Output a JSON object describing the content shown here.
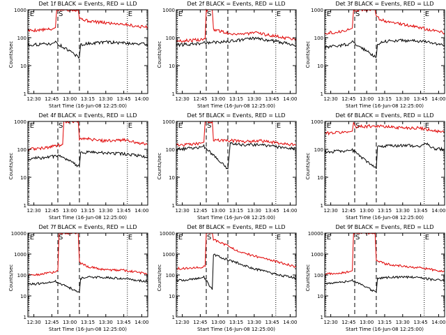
{
  "figure": {
    "y_axis_label": "Counts/sec",
    "x_axis_label": "Start Time (16-Jun-08 12:25:00)",
    "legend_text": "BLACK = Events, RED = LLD",
    "colors": {
      "events": "#000000",
      "lld": "#e00000"
    }
  },
  "chart_data": [
    {
      "type": "line",
      "title": "Det 1f BLACK = Events, RED = LLD",
      "xlabel": "Start Time (16-Jun-08 12:25:00)",
      "ylabel": "Counts/sec",
      "yscale": "log",
      "ylim": [
        1,
        1000
      ],
      "x_ticks": [
        "12:30",
        "12:45",
        "13:00",
        "13:15",
        "13:30",
        "13:45",
        "14:00"
      ],
      "y_ticks": [
        "1",
        "10",
        "100",
        "1000"
      ],
      "markers": [
        {
          "label": "E",
          "x": "12:26"
        },
        {
          "label": "S",
          "x": "12:50"
        },
        {
          "label": "E",
          "x": "13:48"
        }
      ],
      "series": [
        {
          "name": "LLD",
          "color": "red",
          "x": [
            "12:25",
            "12:35",
            "12:45",
            "12:48",
            "12:49",
            "13:07",
            "13:08",
            "13:15",
            "13:30",
            "13:45",
            "13:55",
            "14:05"
          ],
          "values": [
            180,
            190,
            200,
            230,
            1000,
            1000,
            500,
            400,
            340,
            310,
            260,
            240
          ]
        },
        {
          "name": "Events",
          "color": "black",
          "x": [
            "12:25",
            "12:35",
            "12:45",
            "12:48",
            "13:08",
            "13:09",
            "13:15",
            "13:30",
            "13:45",
            "13:55",
            "14:05"
          ],
          "values": [
            55,
            58,
            62,
            68,
            20,
            55,
            62,
            70,
            65,
            62,
            58
          ]
        }
      ]
    },
    {
      "type": "line",
      "title": "Det 2f BLACK = Events, RED = LLD",
      "xlabel": "Start Time (16-Jun-08 12:25:00)",
      "ylabel": "Counts/sec",
      "yscale": "log",
      "ylim": [
        1,
        1000
      ],
      "x_ticks": [
        "12:30",
        "12:45",
        "13:00",
        "13:15",
        "13:30",
        "13:45",
        "14:00"
      ],
      "y_ticks": [
        "1",
        "10",
        "100",
        "1000"
      ],
      "markers": [
        {
          "label": "E",
          "x": "12:26"
        },
        {
          "label": "S",
          "x": "12:50"
        },
        {
          "label": "E",
          "x": "13:48"
        }
      ],
      "series": [
        {
          "name": "LLD",
          "color": "red",
          "x": [
            "12:25",
            "12:35",
            "12:45",
            "12:49",
            "12:50",
            "12:55",
            "12:56",
            "13:10",
            "13:20",
            "13:30",
            "13:45",
            "13:55",
            "14:05"
          ],
          "values": [
            75,
            80,
            85,
            90,
            1000,
            1000,
            200,
            140,
            135,
            150,
            120,
            100,
            90
          ]
        },
        {
          "name": "Events",
          "color": "black",
          "x": [
            "12:25",
            "12:35",
            "12:45",
            "12:48",
            "13:10",
            "13:20",
            "13:30",
            "13:45",
            "13:55",
            "14:05"
          ],
          "values": [
            55,
            58,
            62,
            65,
            75,
            85,
            95,
            78,
            65,
            55
          ]
        }
      ]
    },
    {
      "type": "line",
      "title": "Det 3f BLACK = Events, RED = LLD",
      "xlabel": "Start Time (16-Jun-08 12:25:00)",
      "ylabel": "Counts/sec",
      "yscale": "log",
      "ylim": [
        1,
        1000
      ],
      "x_ticks": [
        "12:30",
        "12:45",
        "13:00",
        "13:15",
        "13:30",
        "13:45",
        "14:00"
      ],
      "y_ticks": [
        "1",
        "10",
        "100",
        "1000"
      ],
      "markers": [
        {
          "label": "E",
          "x": "12:26"
        },
        {
          "label": "S",
          "x": "12:50"
        },
        {
          "label": "E",
          "x": "13:48"
        }
      ],
      "series": [
        {
          "name": "LLD",
          "color": "red",
          "x": [
            "12:25",
            "12:35",
            "12:45",
            "12:48",
            "12:49",
            "13:07",
            "13:08",
            "13:15",
            "13:30",
            "13:45",
            "13:55",
            "14:05"
          ],
          "values": [
            150,
            160,
            190,
            220,
            1000,
            1000,
            550,
            400,
            300,
            230,
            180,
            150
          ]
        },
        {
          "name": "Events",
          "color": "black",
          "x": [
            "12:25",
            "12:35",
            "12:45",
            "12:48",
            "13:08",
            "13:09",
            "13:15",
            "13:30",
            "13:45",
            "13:55",
            "14:05"
          ],
          "values": [
            45,
            50,
            60,
            70,
            20,
            60,
            75,
            80,
            75,
            65,
            55
          ]
        }
      ]
    },
    {
      "type": "line",
      "title": "Det 4f BLACK = Events, RED = LLD",
      "xlabel": "Start Time (16-Jun-08 12:25:00)",
      "ylabel": "Counts/sec",
      "yscale": "log",
      "ylim": [
        1,
        1000
      ],
      "x_ticks": [
        "12:30",
        "12:45",
        "13:00",
        "13:15",
        "13:30",
        "13:45",
        "14:00"
      ],
      "y_ticks": [
        "1",
        "10",
        "100",
        "1000"
      ],
      "markers": [
        {
          "label": "E",
          "x": "12:26"
        },
        {
          "label": "S",
          "x": "12:50"
        },
        {
          "label": "E",
          "x": "13:48"
        }
      ],
      "series": [
        {
          "name": "LLD",
          "color": "red",
          "x": [
            "12:25",
            "12:35",
            "12:45",
            "12:54",
            "12:55",
            "13:07",
            "13:08",
            "13:15",
            "13:30",
            "13:45",
            "13:55",
            "14:05"
          ],
          "values": [
            100,
            110,
            125,
            150,
            1000,
            1000,
            250,
            240,
            200,
            220,
            180,
            150
          ]
        },
        {
          "name": "Events",
          "color": "black",
          "x": [
            "12:25",
            "12:35",
            "12:45",
            "12:50",
            "13:08",
            "13:09",
            "13:15",
            "13:30",
            "13:45",
            "13:55",
            "14:05"
          ],
          "values": [
            45,
            50,
            55,
            60,
            25,
            75,
            80,
            75,
            70,
            60,
            55
          ]
        }
      ]
    },
    {
      "type": "line",
      "title": "Det 5f BLACK = Events, RED = LLD",
      "xlabel": "Start Time (16-Jun-08 12:25:00)",
      "ylabel": "Counts/sec",
      "yscale": "log",
      "ylim": [
        1,
        1000
      ],
      "x_ticks": [
        "12:30",
        "12:45",
        "13:00",
        "13:15",
        "13:30",
        "13:45",
        "14:00"
      ],
      "y_ticks": [
        "1",
        "10",
        "100",
        "1000"
      ],
      "markers": [
        {
          "label": "E",
          "x": "12:26"
        },
        {
          "label": "S",
          "x": "12:50"
        },
        {
          "label": "E",
          "x": "13:48"
        }
      ],
      "series": [
        {
          "name": "LLD",
          "color": "red",
          "x": [
            "12:25",
            "12:35",
            "12:45",
            "12:48",
            "12:49",
            "12:55",
            "12:56",
            "13:10",
            "13:20",
            "13:35",
            "13:45",
            "13:55",
            "14:05"
          ],
          "values": [
            140,
            150,
            165,
            180,
            1000,
            1000,
            220,
            210,
            190,
            210,
            180,
            160,
            140
          ]
        },
        {
          "name": "Events",
          "color": "black",
          "x": [
            "12:25",
            "12:35",
            "12:45",
            "12:48",
            "13:08",
            "13:10",
            "13:20",
            "13:35",
            "13:45",
            "13:55",
            "14:05"
          ],
          "values": [
            100,
            110,
            120,
            130,
            20,
            160,
            145,
            150,
            130,
            115,
            105
          ]
        }
      ]
    },
    {
      "type": "line",
      "title": "Det 6f BLACK = Events, RED = LLD",
      "xlabel": "Start Time (16-Jun-08 12:25:00)",
      "ylabel": "Counts/sec",
      "yscale": "log",
      "ylim": [
        1,
        1000
      ],
      "x_ticks": [
        "12:30",
        "12:45",
        "13:00",
        "13:15",
        "13:30",
        "13:45",
        "14:00"
      ],
      "y_ticks": [
        "1",
        "10",
        "100",
        "1000"
      ],
      "markers": [
        {
          "label": "E",
          "x": "12:26"
        },
        {
          "label": "S",
          "x": "12:50"
        },
        {
          "label": "E",
          "x": "13:48"
        }
      ],
      "series": [
        {
          "name": "LLD",
          "color": "red",
          "x": [
            "12:25",
            "12:35",
            "12:45",
            "12:48",
            "12:49",
            "12:51",
            "13:08",
            "13:15",
            "13:30",
            "13:45",
            "13:55",
            "14:05"
          ],
          "values": [
            380,
            400,
            420,
            450,
            900,
            650,
            700,
            650,
            600,
            580,
            480,
            400
          ]
        },
        {
          "name": "Events",
          "color": "black",
          "x": [
            "12:25",
            "12:35",
            "12:45",
            "12:48",
            "13:08",
            "13:09",
            "13:15",
            "13:30",
            "13:45",
            "13:50",
            "13:55",
            "14:05"
          ],
          "values": [
            80,
            85,
            90,
            95,
            20,
            120,
            130,
            140,
            130,
            160,
            110,
            100
          ]
        }
      ]
    },
    {
      "type": "line",
      "title": "Det 7f BLACK = Events, RED = LLD",
      "xlabel": "Start Time (16-Jun-08 12:25:00)",
      "ylabel": "Counts/sec",
      "yscale": "log",
      "ylim": [
        1,
        10000
      ],
      "x_ticks": [
        "12:30",
        "12:45",
        "13:00",
        "13:15",
        "13:30",
        "13:45",
        "14:00"
      ],
      "y_ticks": [
        "1",
        "10",
        "100",
        "1000",
        "10000"
      ],
      "markers": [
        {
          "label": "E",
          "x": "12:26"
        },
        {
          "label": "S",
          "x": "12:50"
        },
        {
          "label": "E",
          "x": "13:48"
        }
      ],
      "series": [
        {
          "name": "LLD",
          "color": "red",
          "x": [
            "12:25",
            "12:35",
            "12:45",
            "12:50",
            "12:51",
            "13:07",
            "13:08",
            "13:15",
            "13:30",
            "13:45",
            "13:55",
            "14:05"
          ],
          "values": [
            100,
            110,
            130,
            160,
            10000,
            10000,
            400,
            250,
            180,
            170,
            140,
            110
          ]
        },
        {
          "name": "Events",
          "color": "black",
          "x": [
            "12:25",
            "12:35",
            "12:45",
            "12:48",
            "13:08",
            "13:09",
            "13:15",
            "13:30",
            "13:45",
            "13:55",
            "14:05"
          ],
          "values": [
            35,
            40,
            45,
            50,
            15,
            70,
            80,
            75,
            70,
            55,
            50
          ]
        }
      ]
    },
    {
      "type": "line",
      "title": "Det 8f BLACK = Events, RED = LLD",
      "xlabel": "Start Time (16-Jun-08 12:25:00)",
      "ylabel": "Counts/sec",
      "yscale": "log",
      "ylim": [
        1,
        10000
      ],
      "x_ticks": [
        "12:30",
        "12:45",
        "13:00",
        "13:15",
        "13:30",
        "13:45",
        "14:00"
      ],
      "y_ticks": [
        "1",
        "10",
        "100",
        "1000",
        "10000"
      ],
      "markers": [
        {
          "label": "E",
          "x": "12:26"
        },
        {
          "label": "S",
          "x": "12:50"
        },
        {
          "label": "E",
          "x": "13:48"
        }
      ],
      "series": [
        {
          "name": "LLD",
          "color": "red",
          "x": [
            "12:25",
            "12:35",
            "12:45",
            "12:49",
            "12:50",
            "12:55",
            "12:56",
            "13:05",
            "13:15",
            "13:30",
            "13:45",
            "13:55",
            "14:05"
          ],
          "values": [
            200,
            210,
            230,
            260,
            10000,
            10000,
            5000,
            3000,
            1500,
            800,
            500,
            350,
            250
          ]
        },
        {
          "name": "Events",
          "color": "black",
          "x": [
            "12:25",
            "12:35",
            "12:45",
            "12:48",
            "12:55",
            "12:56",
            "13:05",
            "13:15",
            "13:30",
            "13:45",
            "13:55",
            "14:05"
          ],
          "values": [
            55,
            60,
            70,
            80,
            20,
            1000,
            600,
            400,
            200,
            120,
            90,
            70
          ]
        }
      ]
    },
    {
      "type": "line",
      "title": "Det 9f BLACK = Events, RED = LLD",
      "xlabel": "Start Time (16-Jun-08 12:25:00)",
      "ylabel": "Counts/sec",
      "yscale": "log",
      "ylim": [
        1,
        10000
      ],
      "x_ticks": [
        "12:30",
        "12:45",
        "13:00",
        "13:15",
        "13:30",
        "13:45",
        "14:00"
      ],
      "y_ticks": [
        "1",
        "10",
        "100",
        "1000",
        "10000"
      ],
      "markers": [
        {
          "label": "E",
          "x": "12:26"
        },
        {
          "label": "S",
          "x": "12:50"
        },
        {
          "label": "E",
          "x": "13:48"
        }
      ],
      "series": [
        {
          "name": "LLD",
          "color": "red",
          "x": [
            "12:25",
            "12:35",
            "12:45",
            "12:48",
            "12:49",
            "13:07",
            "13:08",
            "13:15",
            "13:30",
            "13:45",
            "13:55",
            "14:05"
          ],
          "values": [
            110,
            120,
            140,
            160,
            10000,
            10000,
            500,
            350,
            260,
            220,
            180,
            150
          ]
        },
        {
          "name": "Events",
          "color": "black",
          "x": [
            "12:25",
            "12:35",
            "12:45",
            "12:48",
            "13:08",
            "13:09",
            "13:15",
            "13:30",
            "13:45",
            "13:55",
            "14:05"
          ],
          "values": [
            40,
            45,
            50,
            55,
            15,
            65,
            75,
            80,
            75,
            60,
            55
          ]
        }
      ]
    }
  ]
}
